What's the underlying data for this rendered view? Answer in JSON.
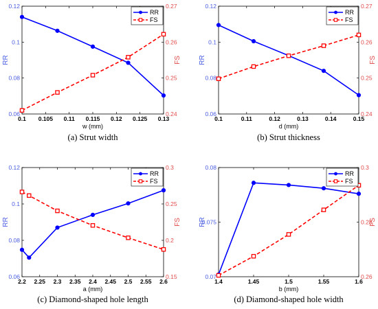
{
  "chart_data": [
    {
      "type": "line",
      "caption": "(a) Strut width",
      "xlabel": "w (mm)",
      "ylabel_left": "RR",
      "ylabel_right": "FS",
      "x": [
        0.1,
        0.1075,
        0.115,
        0.1225,
        0.13
      ],
      "xlim": [
        0.1,
        0.13
      ],
      "xticks": [
        "0.1",
        "0.105",
        "0.11",
        "0.115",
        "0.12",
        "0.125",
        "0.13"
      ],
      "ylim_left": [
        0.06,
        0.12
      ],
      "yticks_left": [
        "0.06",
        "0.08",
        "0.1",
        "0.12"
      ],
      "ylim_right": [
        0.24,
        0.27
      ],
      "yticks_right": [
        "0.24",
        "0.25",
        "0.26",
        "0.27"
      ],
      "series": [
        {
          "name": "RR",
          "axis": "left",
          "color": "#0000ff",
          "style": "solid",
          "marker": "circle",
          "values": [
            0.114,
            0.1063,
            0.0975,
            0.0885,
            0.0703
          ]
        },
        {
          "name": "FS",
          "axis": "right",
          "color": "#ff0000",
          "style": "dashed",
          "marker": "square",
          "values": [
            0.241,
            0.246,
            0.2508,
            0.2558,
            0.2622
          ]
        }
      ],
      "legend": "top-right",
      "grid": false
    },
    {
      "type": "line",
      "caption": "(b) Strut thickness",
      "xlabel": "d (mm)",
      "ylabel_left": "RR",
      "ylabel_right": "FS",
      "x": [
        0.1,
        0.1125,
        0.125,
        0.1375,
        0.15
      ],
      "xlim": [
        0.1,
        0.15
      ],
      "xticks": [
        "0.1",
        "0.11",
        "0.12",
        "0.13",
        "0.14",
        "0.15"
      ],
      "ylim_left": [
        0.06,
        0.12
      ],
      "yticks_left": [
        "0.06",
        "0.08",
        "0.1",
        "0.12"
      ],
      "ylim_right": [
        0.24,
        0.27
      ],
      "yticks_right": [
        "0.24",
        "0.25",
        "0.26",
        "0.27"
      ],
      "series": [
        {
          "name": "RR",
          "axis": "left",
          "color": "#0000ff",
          "style": "solid",
          "marker": "circle",
          "values": [
            0.1095,
            0.1005,
            0.0925,
            0.084,
            0.0705
          ]
        },
        {
          "name": "FS",
          "axis": "right",
          "color": "#ff0000",
          "style": "dashed",
          "marker": "square",
          "values": [
            0.2498,
            0.2532,
            0.2562,
            0.259,
            0.262
          ]
        }
      ],
      "legend": "top-right",
      "grid": false
    },
    {
      "type": "line",
      "caption": "(c) Diamond-shaped hole length",
      "xlabel": "a (mm)",
      "ylabel_left": "RR",
      "ylabel_right": "FS",
      "x": [
        2.2,
        2.22,
        2.3,
        2.4,
        2.5,
        2.6
      ],
      "xlim": [
        2.2,
        2.6
      ],
      "xticks": [
        "2.2",
        "2.25",
        "2.3",
        "2.35",
        "2.4",
        "2.45",
        "2.5",
        "2.55",
        "2.6"
      ],
      "ylim_left": [
        0.06,
        0.12
      ],
      "yticks_left": [
        "0.06",
        "0.08",
        "0.1",
        "0.12"
      ],
      "ylim_right": [
        0.15,
        0.3
      ],
      "yticks_right": [
        "0.15",
        "0.2",
        "0.25",
        "0.3"
      ],
      "series": [
        {
          "name": "RR",
          "axis": "left",
          "color": "#0000ff",
          "style": "solid",
          "marker": "circle",
          "values": [
            0.0748,
            0.0705,
            0.087,
            0.094,
            0.1003,
            0.1075
          ]
        },
        {
          "name": "FS",
          "axis": "right",
          "color": "#ff0000",
          "style": "dashed",
          "marker": "square",
          "values": [
            0.2665,
            0.2615,
            0.2405,
            0.2205,
            0.2035,
            0.1875
          ]
        }
      ],
      "legend": "top-right",
      "grid": false
    },
    {
      "type": "line",
      "caption": "(d) Diamond-shaped hole width",
      "xlabel": "b (mm)",
      "ylabel_left": "RR",
      "ylabel_right": "FS",
      "x": [
        1.4,
        1.45,
        1.5,
        1.55,
        1.6
      ],
      "xlim": [
        1.4,
        1.6
      ],
      "xticks": [
        "1.4",
        "1.45",
        "1.5",
        "1.55",
        "1.6"
      ],
      "ylim_left": [
        0.07,
        0.08
      ],
      "yticks_left": [
        "0.07",
        "0.075",
        "0.08"
      ],
      "ylim_right": [
        0.26,
        0.3
      ],
      "yticks_right": [
        "0.26",
        "0.28",
        "0.3"
      ],
      "series": [
        {
          "name": "RR",
          "axis": "left",
          "color": "#0000ff",
          "style": "solid",
          "marker": "circle",
          "values": [
            0.0702,
            0.0786,
            0.0784,
            0.0781,
            0.0776
          ]
        },
        {
          "name": "FS",
          "axis": "right",
          "color": "#ff0000",
          "style": "dashed",
          "marker": "square",
          "values": [
            0.2605,
            0.2675,
            0.2755,
            0.2845,
            0.2935
          ]
        }
      ],
      "legend": "top-right",
      "grid": false
    }
  ]
}
